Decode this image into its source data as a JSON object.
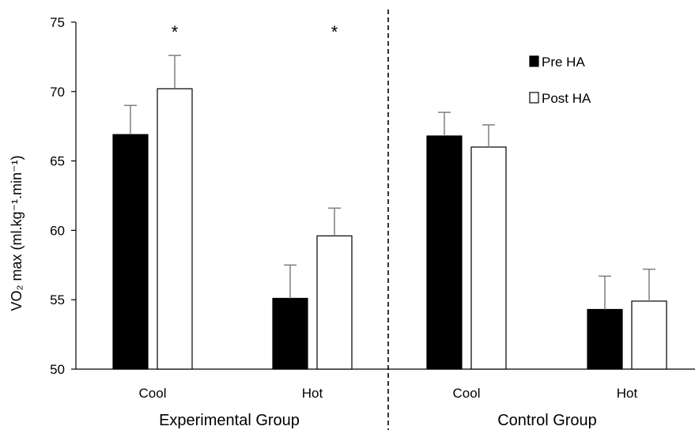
{
  "chart_data": {
    "type": "bar",
    "ylabel": "VO₂ max (ml.kg⁻¹.min⁻¹)",
    "ylim": [
      50,
      75
    ],
    "yticks": [
      "50",
      "55",
      "60",
      "65",
      "70",
      "75"
    ],
    "groups": [
      {
        "label": "Experimental Group",
        "categories": [
          "Cool",
          "Hot"
        ]
      },
      {
        "label": "Control Group",
        "categories": [
          "Cool",
          "Hot"
        ]
      }
    ],
    "categories": [
      "Cool",
      "Hot",
      "Cool",
      "Hot"
    ],
    "series": [
      {
        "name": "Pre HA",
        "color": "#000000",
        "values": [
          66.9,
          55.1,
          66.8,
          54.3
        ],
        "errors": [
          2.1,
          2.4,
          1.7,
          2.4
        ]
      },
      {
        "name": "Post HA",
        "color": "#ffffff",
        "values": [
          70.2,
          59.6,
          66.0,
          54.9
        ],
        "errors": [
          2.4,
          2.0,
          1.6,
          2.3
        ]
      }
    ],
    "significance": [
      "*",
      "*",
      "",
      ""
    ],
    "legend": {
      "position": "top-right"
    },
    "grid": false
  }
}
